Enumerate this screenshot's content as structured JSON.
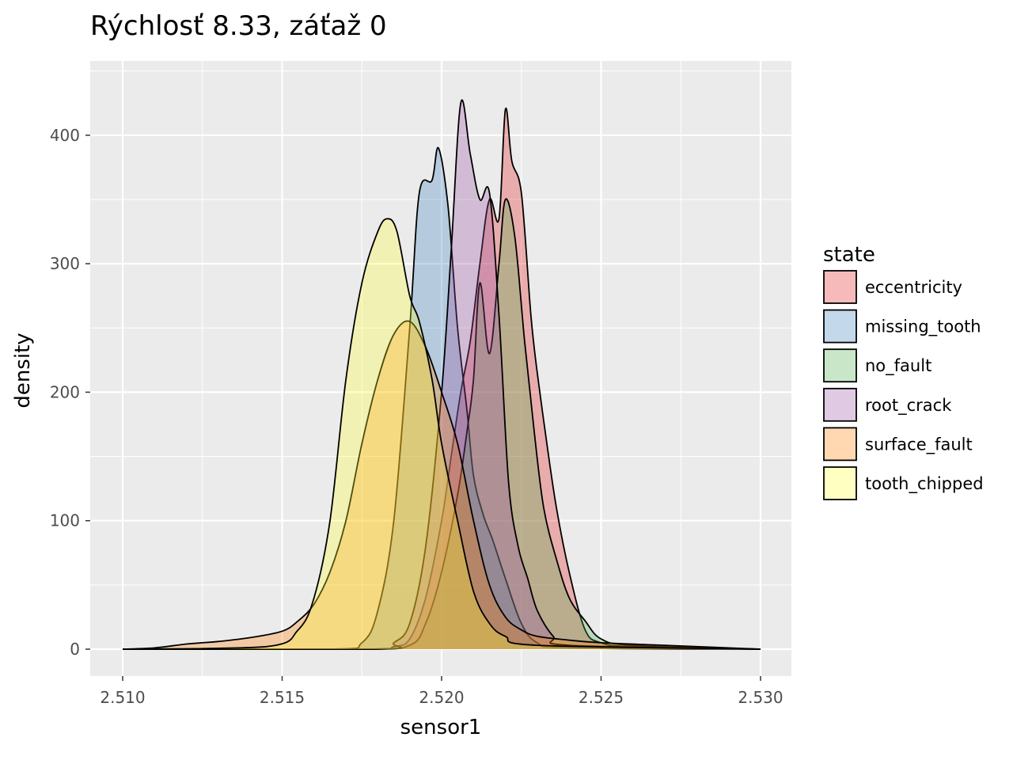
{
  "chart_data": {
    "type": "area",
    "subtype": "density",
    "title": "Rýchlosť 8.33, záťaž 0",
    "xlabel": "sensor1",
    "ylabel": "density",
    "xlim": [
      2.51,
      2.53
    ],
    "ylim": [
      0,
      450
    ],
    "x_ticks": [
      "2.510",
      "2.515",
      "2.520",
      "2.525",
      "2.530"
    ],
    "y_ticks": [
      "0",
      "100",
      "200",
      "300",
      "400"
    ],
    "grid": true,
    "legend_title": "state",
    "legend_position": "right",
    "series": [
      {
        "name": "eccentricity",
        "color": "#e41a1c",
        "points": [
          [
            2.51,
            0
          ],
          [
            2.5175,
            0
          ],
          [
            2.5185,
            2
          ],
          [
            2.519,
            8
          ],
          [
            2.5195,
            40
          ],
          [
            2.52,
            100
          ],
          [
            2.5203,
            150
          ],
          [
            2.5206,
            200
          ],
          [
            2.5209,
            240
          ],
          [
            2.5212,
            300
          ],
          [
            2.5215,
            350
          ],
          [
            2.5218,
            335
          ],
          [
            2.522,
            420
          ],
          [
            2.5222,
            380
          ],
          [
            2.5225,
            355
          ],
          [
            2.5228,
            260
          ],
          [
            2.523,
            215
          ],
          [
            2.5233,
            160
          ],
          [
            2.5236,
            110
          ],
          [
            2.524,
            60
          ],
          [
            2.5245,
            15
          ],
          [
            2.525,
            5
          ],
          [
            2.526,
            2
          ],
          [
            2.53,
            0
          ]
        ]
      },
      {
        "name": "missing_tooth",
        "color": "#377eb8",
        "points": [
          [
            2.51,
            0
          ],
          [
            2.5165,
            0
          ],
          [
            2.5175,
            5
          ],
          [
            2.518,
            30
          ],
          [
            2.5185,
            100
          ],
          [
            2.519,
            250
          ],
          [
            2.5193,
            355
          ],
          [
            2.5197,
            365
          ],
          [
            2.5199,
            390
          ],
          [
            2.5202,
            345
          ],
          [
            2.5205,
            250
          ],
          [
            2.5208,
            185
          ],
          [
            2.521,
            135
          ],
          [
            2.5213,
            105
          ],
          [
            2.5216,
            85
          ],
          [
            2.522,
            55
          ],
          [
            2.5225,
            20
          ],
          [
            2.523,
            5
          ],
          [
            2.524,
            1
          ],
          [
            2.53,
            0
          ]
        ]
      },
      {
        "name": "no_fault",
        "color": "#4daf4a",
        "points": [
          [
            2.51,
            0
          ],
          [
            2.5175,
            0
          ],
          [
            2.519,
            3
          ],
          [
            2.5195,
            20
          ],
          [
            2.52,
            60
          ],
          [
            2.5205,
            120
          ],
          [
            2.5208,
            170
          ],
          [
            2.521,
            210
          ],
          [
            2.5212,
            285
          ],
          [
            2.5215,
            230
          ],
          [
            2.5218,
            300
          ],
          [
            2.522,
            350
          ],
          [
            2.5223,
            320
          ],
          [
            2.5226,
            240
          ],
          [
            2.5229,
            170
          ],
          [
            2.5232,
            110
          ],
          [
            2.5236,
            70
          ],
          [
            2.524,
            40
          ],
          [
            2.5245,
            22
          ],
          [
            2.525,
            8
          ],
          [
            2.526,
            3
          ],
          [
            2.53,
            0
          ]
        ]
      },
      {
        "name": "root_crack",
        "color": "#984ea3",
        "points": [
          [
            2.51,
            0
          ],
          [
            2.518,
            0
          ],
          [
            2.5185,
            5
          ],
          [
            2.519,
            20
          ],
          [
            2.5195,
            80
          ],
          [
            2.52,
            200
          ],
          [
            2.5203,
            310
          ],
          [
            2.5206,
            425
          ],
          [
            2.5209,
            385
          ],
          [
            2.5212,
            350
          ],
          [
            2.5215,
            355
          ],
          [
            2.5218,
            260
          ],
          [
            2.5221,
            130
          ],
          [
            2.5224,
            80
          ],
          [
            2.5227,
            55
          ],
          [
            2.523,
            30
          ],
          [
            2.5235,
            10
          ],
          [
            2.524,
            3
          ],
          [
            2.53,
            0
          ]
        ]
      },
      {
        "name": "surface_fault",
        "color": "#ff7f00",
        "points": [
          [
            2.51,
            0
          ],
          [
            2.511,
            1
          ],
          [
            2.512,
            4
          ],
          [
            2.513,
            6
          ],
          [
            2.514,
            9
          ],
          [
            2.515,
            14
          ],
          [
            2.5155,
            22
          ],
          [
            2.516,
            35
          ],
          [
            2.5165,
            60
          ],
          [
            2.517,
            100
          ],
          [
            2.5175,
            160
          ],
          [
            2.518,
            210
          ],
          [
            2.5185,
            245
          ],
          [
            2.519,
            255
          ],
          [
            2.5195,
            235
          ],
          [
            2.52,
            200
          ],
          [
            2.5205,
            160
          ],
          [
            2.521,
            100
          ],
          [
            2.5215,
            50
          ],
          [
            2.522,
            25
          ],
          [
            2.5225,
            15
          ],
          [
            2.523,
            10
          ],
          [
            2.524,
            7
          ],
          [
            2.525,
            5
          ],
          [
            2.527,
            3
          ],
          [
            2.53,
            0
          ]
        ]
      },
      {
        "name": "tooth_chipped",
        "color": "#ffff33",
        "points": [
          [
            2.51,
            0
          ],
          [
            2.5145,
            2
          ],
          [
            2.5155,
            15
          ],
          [
            2.516,
            40
          ],
          [
            2.5165,
            100
          ],
          [
            2.517,
            210
          ],
          [
            2.5175,
            285
          ],
          [
            2.518,
            325
          ],
          [
            2.5183,
            335
          ],
          [
            2.5186,
            325
          ],
          [
            2.519,
            275
          ],
          [
            2.5193,
            255
          ],
          [
            2.5197,
            210
          ],
          [
            2.52,
            160
          ],
          [
            2.5205,
            100
          ],
          [
            2.521,
            45
          ],
          [
            2.5215,
            20
          ],
          [
            2.522,
            10
          ],
          [
            2.523,
            3
          ],
          [
            2.53,
            0
          ]
        ]
      }
    ]
  }
}
